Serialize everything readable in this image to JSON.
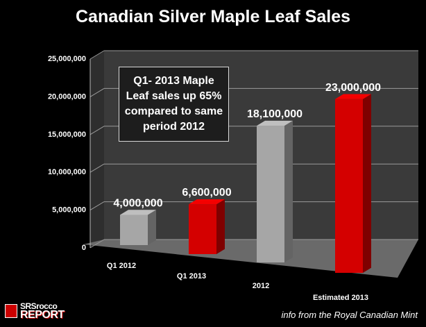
{
  "chart_data": {
    "type": "bar",
    "title": "Canadian Silver Maple Leaf Sales",
    "categories": [
      "Q1 2012",
      "Q1 2013",
      "2012",
      "Estimated 2013"
    ],
    "values": [
      4000000,
      6600000,
      18100000,
      23000000
    ],
    "data_labels": [
      "4,000,000",
      "6,600,000",
      "18,100,000",
      "23,000,000"
    ],
    "bar_colors": [
      "#a6a6a6",
      "#d40000",
      "#a6a6a6",
      "#d40000"
    ],
    "ylim": [
      0,
      25000000
    ],
    "yticks": [
      0,
      5000000,
      10000000,
      15000000,
      20000000,
      25000000
    ],
    "ytick_labels": [
      "0",
      "5,000,000",
      "10,000,000",
      "15,000,000",
      "20,000,000",
      "25,000,000"
    ],
    "xlabel": "",
    "ylabel": "",
    "grid": true,
    "style": "3d-column"
  },
  "annotation": {
    "text": "Q1- 2013 Maple Leaf sales up 65% compared to same period 2012"
  },
  "logo": {
    "line1": "SRSrocco",
    "line2": "REPORT"
  },
  "source_note": "info from the Royal Canadian Mint",
  "colors": {
    "background": "#000000",
    "wall": "#3a3a3a",
    "floor": "#6a6a6a",
    "gray_bar": "#a6a6a6",
    "red_bar": "#d40000"
  }
}
